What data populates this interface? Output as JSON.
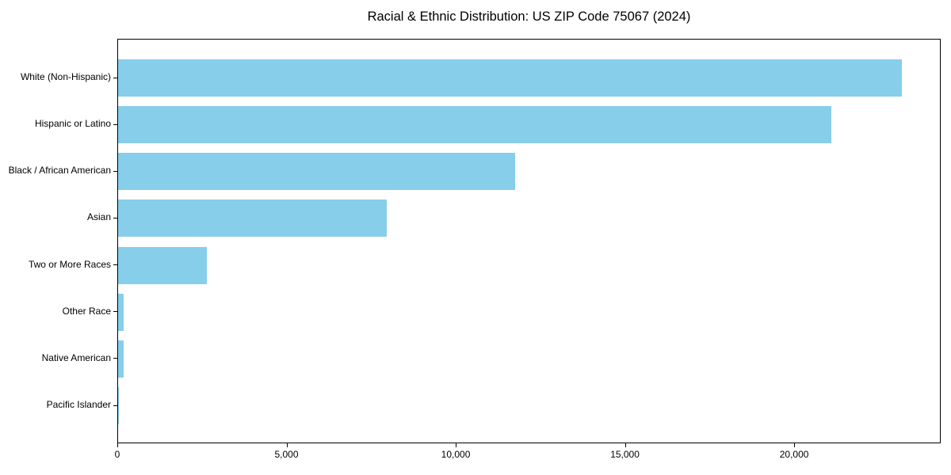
{
  "chart_data": {
    "type": "bar",
    "orientation": "horizontal",
    "title": "Racial & Ethnic Distribution: US ZIP Code 75067 (2024)",
    "categories": [
      "White (Non-Hispanic)",
      "Hispanic or Latino",
      "Black / African American",
      "Asian",
      "Two or More Races",
      "Other Race",
      "Native American",
      "Pacific Islander"
    ],
    "values": [
      23150,
      21080,
      11730,
      7930,
      2620,
      165,
      165,
      20
    ],
    "xlabel": "",
    "ylabel": "",
    "xlim": [
      0,
      24330
    ],
    "xticks": [
      {
        "value": 0,
        "label": "0"
      },
      {
        "value": 5000,
        "label": "5,000"
      },
      {
        "value": 10000,
        "label": "10,000"
      },
      {
        "value": 15000,
        "label": "15,000"
      },
      {
        "value": 20000,
        "label": "20,000"
      }
    ],
    "grid": false,
    "legend": null,
    "bar_color": "#87CEEB",
    "spine_color": "#000000",
    "text_color": "#000000",
    "background_color": "#ffffff"
  }
}
